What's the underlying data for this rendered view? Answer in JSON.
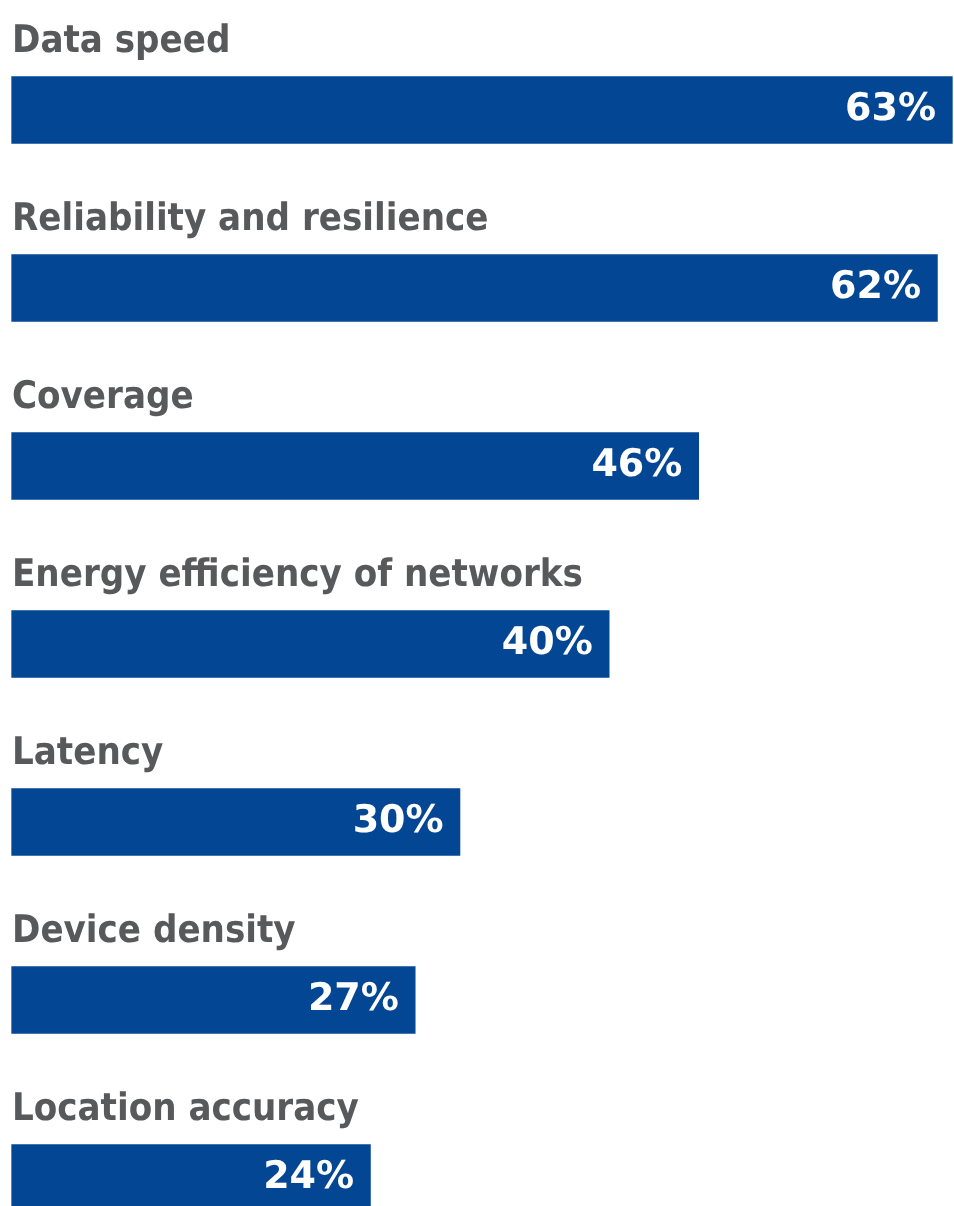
{
  "chart_data": {
    "type": "bar",
    "orientation": "horizontal",
    "categories": [
      "Data speed",
      "Reliability and resilience",
      "Coverage",
      "Energy efficiency of networks",
      "Latency",
      "Device density",
      "Location accuracy"
    ],
    "values": [
      63,
      62,
      46,
      40,
      30,
      27,
      24
    ],
    "value_labels": [
      "63%",
      "62%",
      "46%",
      "40%",
      "30%",
      "27%",
      "24%"
    ],
    "color": "#034694",
    "tick_labels": false
  }
}
